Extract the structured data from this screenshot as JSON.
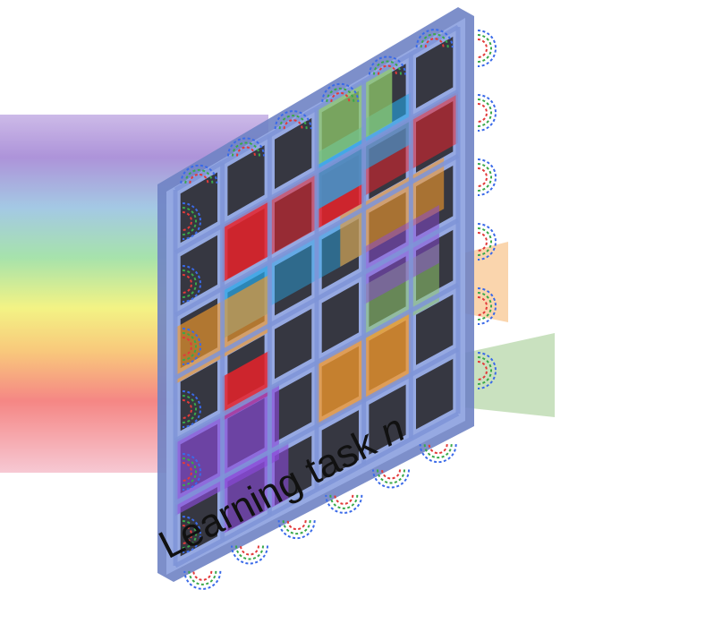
{
  "caption": {
    "text": "Learning task",
    "variable": "n"
  },
  "colors": {
    "panel_frame": "#7f95d8",
    "pixel_dark": "#2e2e33",
    "rainbow": [
      "#a88cd8",
      "#9c7fd0",
      "#8fb8e0",
      "#8fd49a",
      "#f0f07a",
      "#f9c06a",
      "#f57a78",
      "#f4a0b4"
    ],
    "beam_red": "#e8222a",
    "beam_blue": "#27a8e8",
    "beam_orange": "#f59a2a",
    "beam_green": "#8fca6a",
    "beam_purple": "#8a4ad8",
    "ring_colors": [
      "#e23a3a",
      "#3aa84a",
      "#3a6ae8"
    ]
  },
  "grid": {
    "rows": 6,
    "cols": 6
  }
}
